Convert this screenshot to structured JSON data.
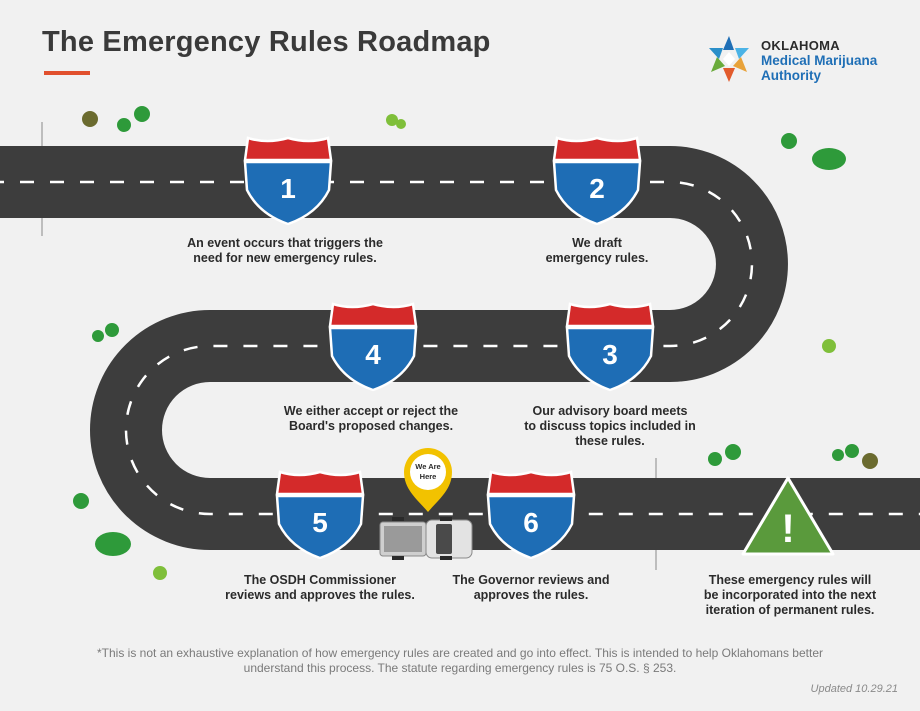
{
  "header": {
    "title": "The Emergency Rules Roadmap"
  },
  "logo": {
    "org": "OKLAHOMA",
    "line1": "Medical Marijuana",
    "line2": "Authority"
  },
  "steps": [
    {
      "number": "1",
      "caption": "An event occurs that triggers the\nneed for new emergency rules."
    },
    {
      "number": "2",
      "caption": "We draft\nemergency rules."
    },
    {
      "number": "3",
      "caption": "Our advisory board meets\nto discuss topics included in\nthese rules."
    },
    {
      "number": "4",
      "caption": "We either accept or reject the\nBoard's proposed changes."
    },
    {
      "number": "5",
      "caption": "The OSDH Commissioner\nreviews and approves the rules."
    },
    {
      "number": "6",
      "caption": "The Governor reviews and\napproves the rules."
    }
  ],
  "final": {
    "symbol": "!",
    "caption": "These emergency rules will\nbe incorporated into the next\niteration of permanent rules."
  },
  "marker": {
    "line1": "We Are",
    "line2": "Here"
  },
  "footnote": "*This is not an exhaustive explanation of how emergency rules are created and go into effect. This is intended to help Oklahomans better understand this process. The statute regarding emergency rules is 75 O.S. § 253.",
  "updated": "Updated 10.29.21",
  "colors": {
    "road": "#3d3d3d",
    "shield_blue": "#1e6db5",
    "shield_red": "#d42a2a",
    "warning_green": "#5a9a3c",
    "accent": "#e1502e",
    "marker_yellow": "#f2c200"
  }
}
